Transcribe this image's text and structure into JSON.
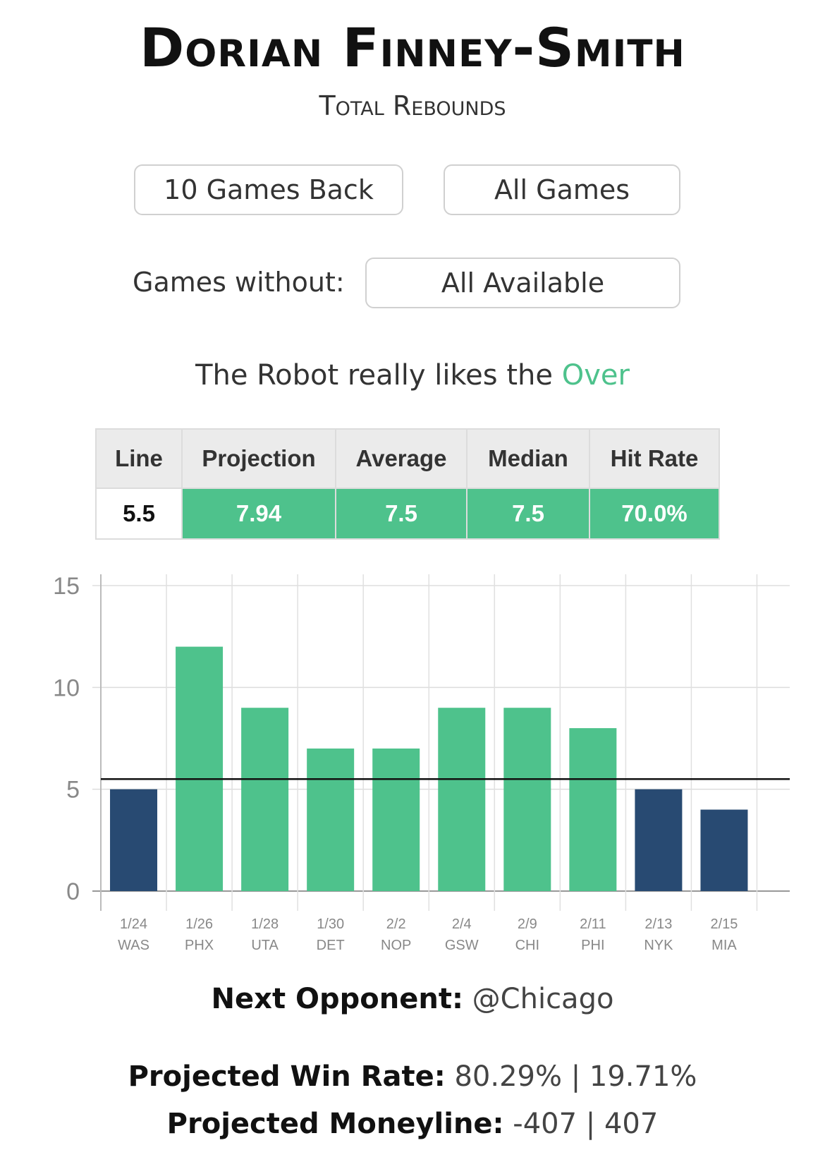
{
  "header": {
    "player_name": "Dorian Finney-Smith",
    "stat_name": "Total Rebounds"
  },
  "filters": {
    "range_button": "10 Games Back",
    "games_button": "All Games",
    "without_label": "Games without:",
    "without_button": "All Available"
  },
  "verdict": {
    "text": "The Robot really likes the",
    "pick": "Over"
  },
  "stats_table": {
    "headers": [
      "Line",
      "Projection",
      "Average",
      "Median",
      "Hit Rate"
    ],
    "values": [
      "5.5",
      "7.94",
      "7.5",
      "7.5",
      "70.0%"
    ]
  },
  "colors": {
    "over": "#4ec28c",
    "under": "#284a72",
    "line": "#111111"
  },
  "chart_data": {
    "type": "bar",
    "categories": [
      "1/24",
      "1/26",
      "1/28",
      "1/30",
      "2/2",
      "2/4",
      "2/9",
      "2/11",
      "2/13",
      "2/15"
    ],
    "opponents": [
      "WAS",
      "PHX",
      "UTA",
      "DET",
      "NOP",
      "GSW",
      "CHI",
      "PHI",
      "NYK",
      "MIA"
    ],
    "values": [
      5,
      12,
      9,
      7,
      7,
      9,
      9,
      8,
      5,
      4
    ],
    "line": 5.5,
    "ylim": [
      0,
      15
    ],
    "yticks": [
      "0",
      "5",
      "10",
      "15"
    ],
    "grid": true
  },
  "footer": {
    "next_label": "Next Opponent:",
    "next_value": "@Chicago",
    "win_label": "Projected Win Rate:",
    "win_value": "80.29% | 19.71%",
    "ml_label": "Projected Moneyline:",
    "ml_value": "-407 | 407"
  }
}
